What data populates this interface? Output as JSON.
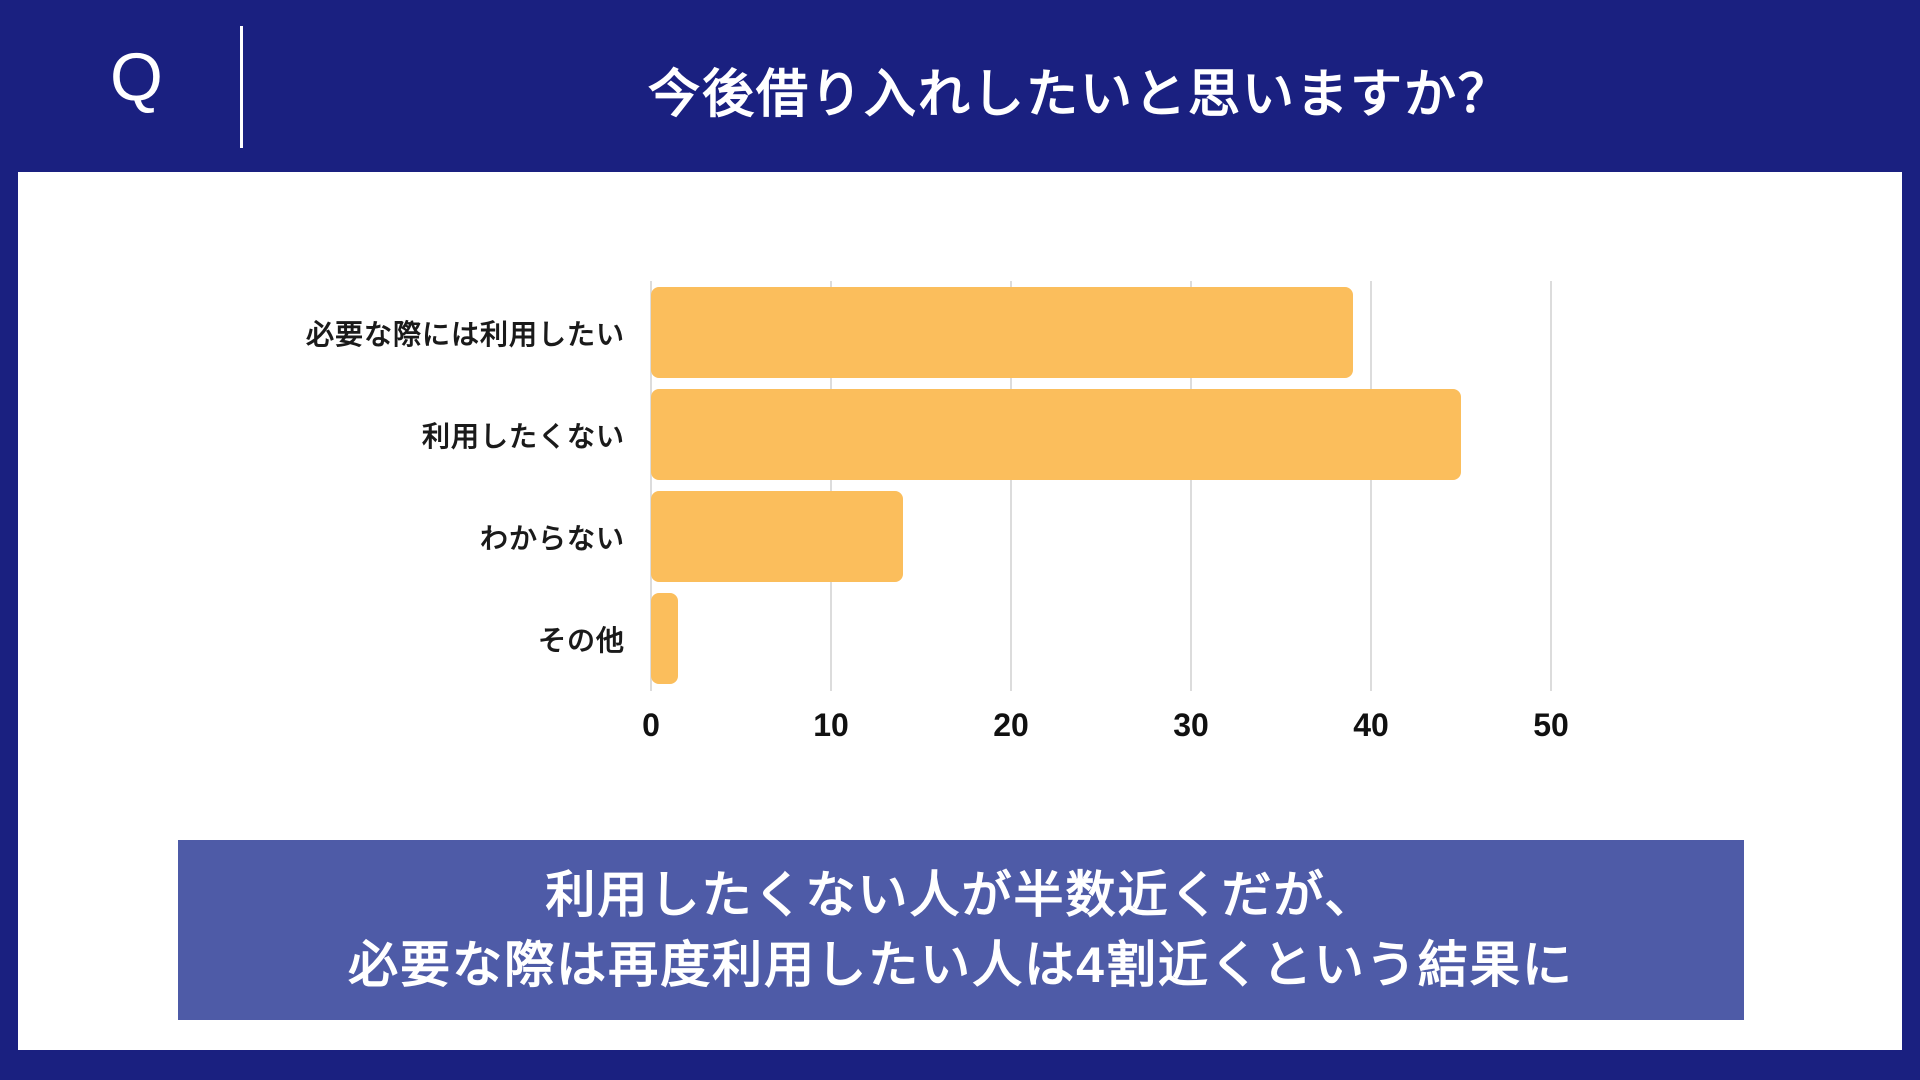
{
  "colors": {
    "background_navy": "#1A2080",
    "bar_orange": "#FBBE5C",
    "banner_indigo": "#4E5BA7",
    "gridline_gray": "#DCDCDC"
  },
  "header": {
    "q_label": "Q",
    "title": "今後借り入れしたいと思いますか？"
  },
  "chart_data": {
    "type": "bar",
    "orientation": "horizontal",
    "title": "今後借り入れしたいと思いますか？",
    "categories": [
      "必要な際には利用したい",
      "利用したくない",
      "わからない",
      "その他"
    ],
    "values": [
      39,
      45,
      14,
      1.5
    ],
    "xlabel": "",
    "ylabel": "",
    "xlim": [
      0,
      55
    ],
    "xticks": [
      0,
      10,
      20,
      30,
      40,
      50
    ],
    "grid": true,
    "legend": false,
    "bar_color": "#FBBE5C"
  },
  "banner": {
    "line1": "利用したくない人が半数近くだが、",
    "line2": "必要な際は再度利用したい人は4割近くという結果に"
  }
}
